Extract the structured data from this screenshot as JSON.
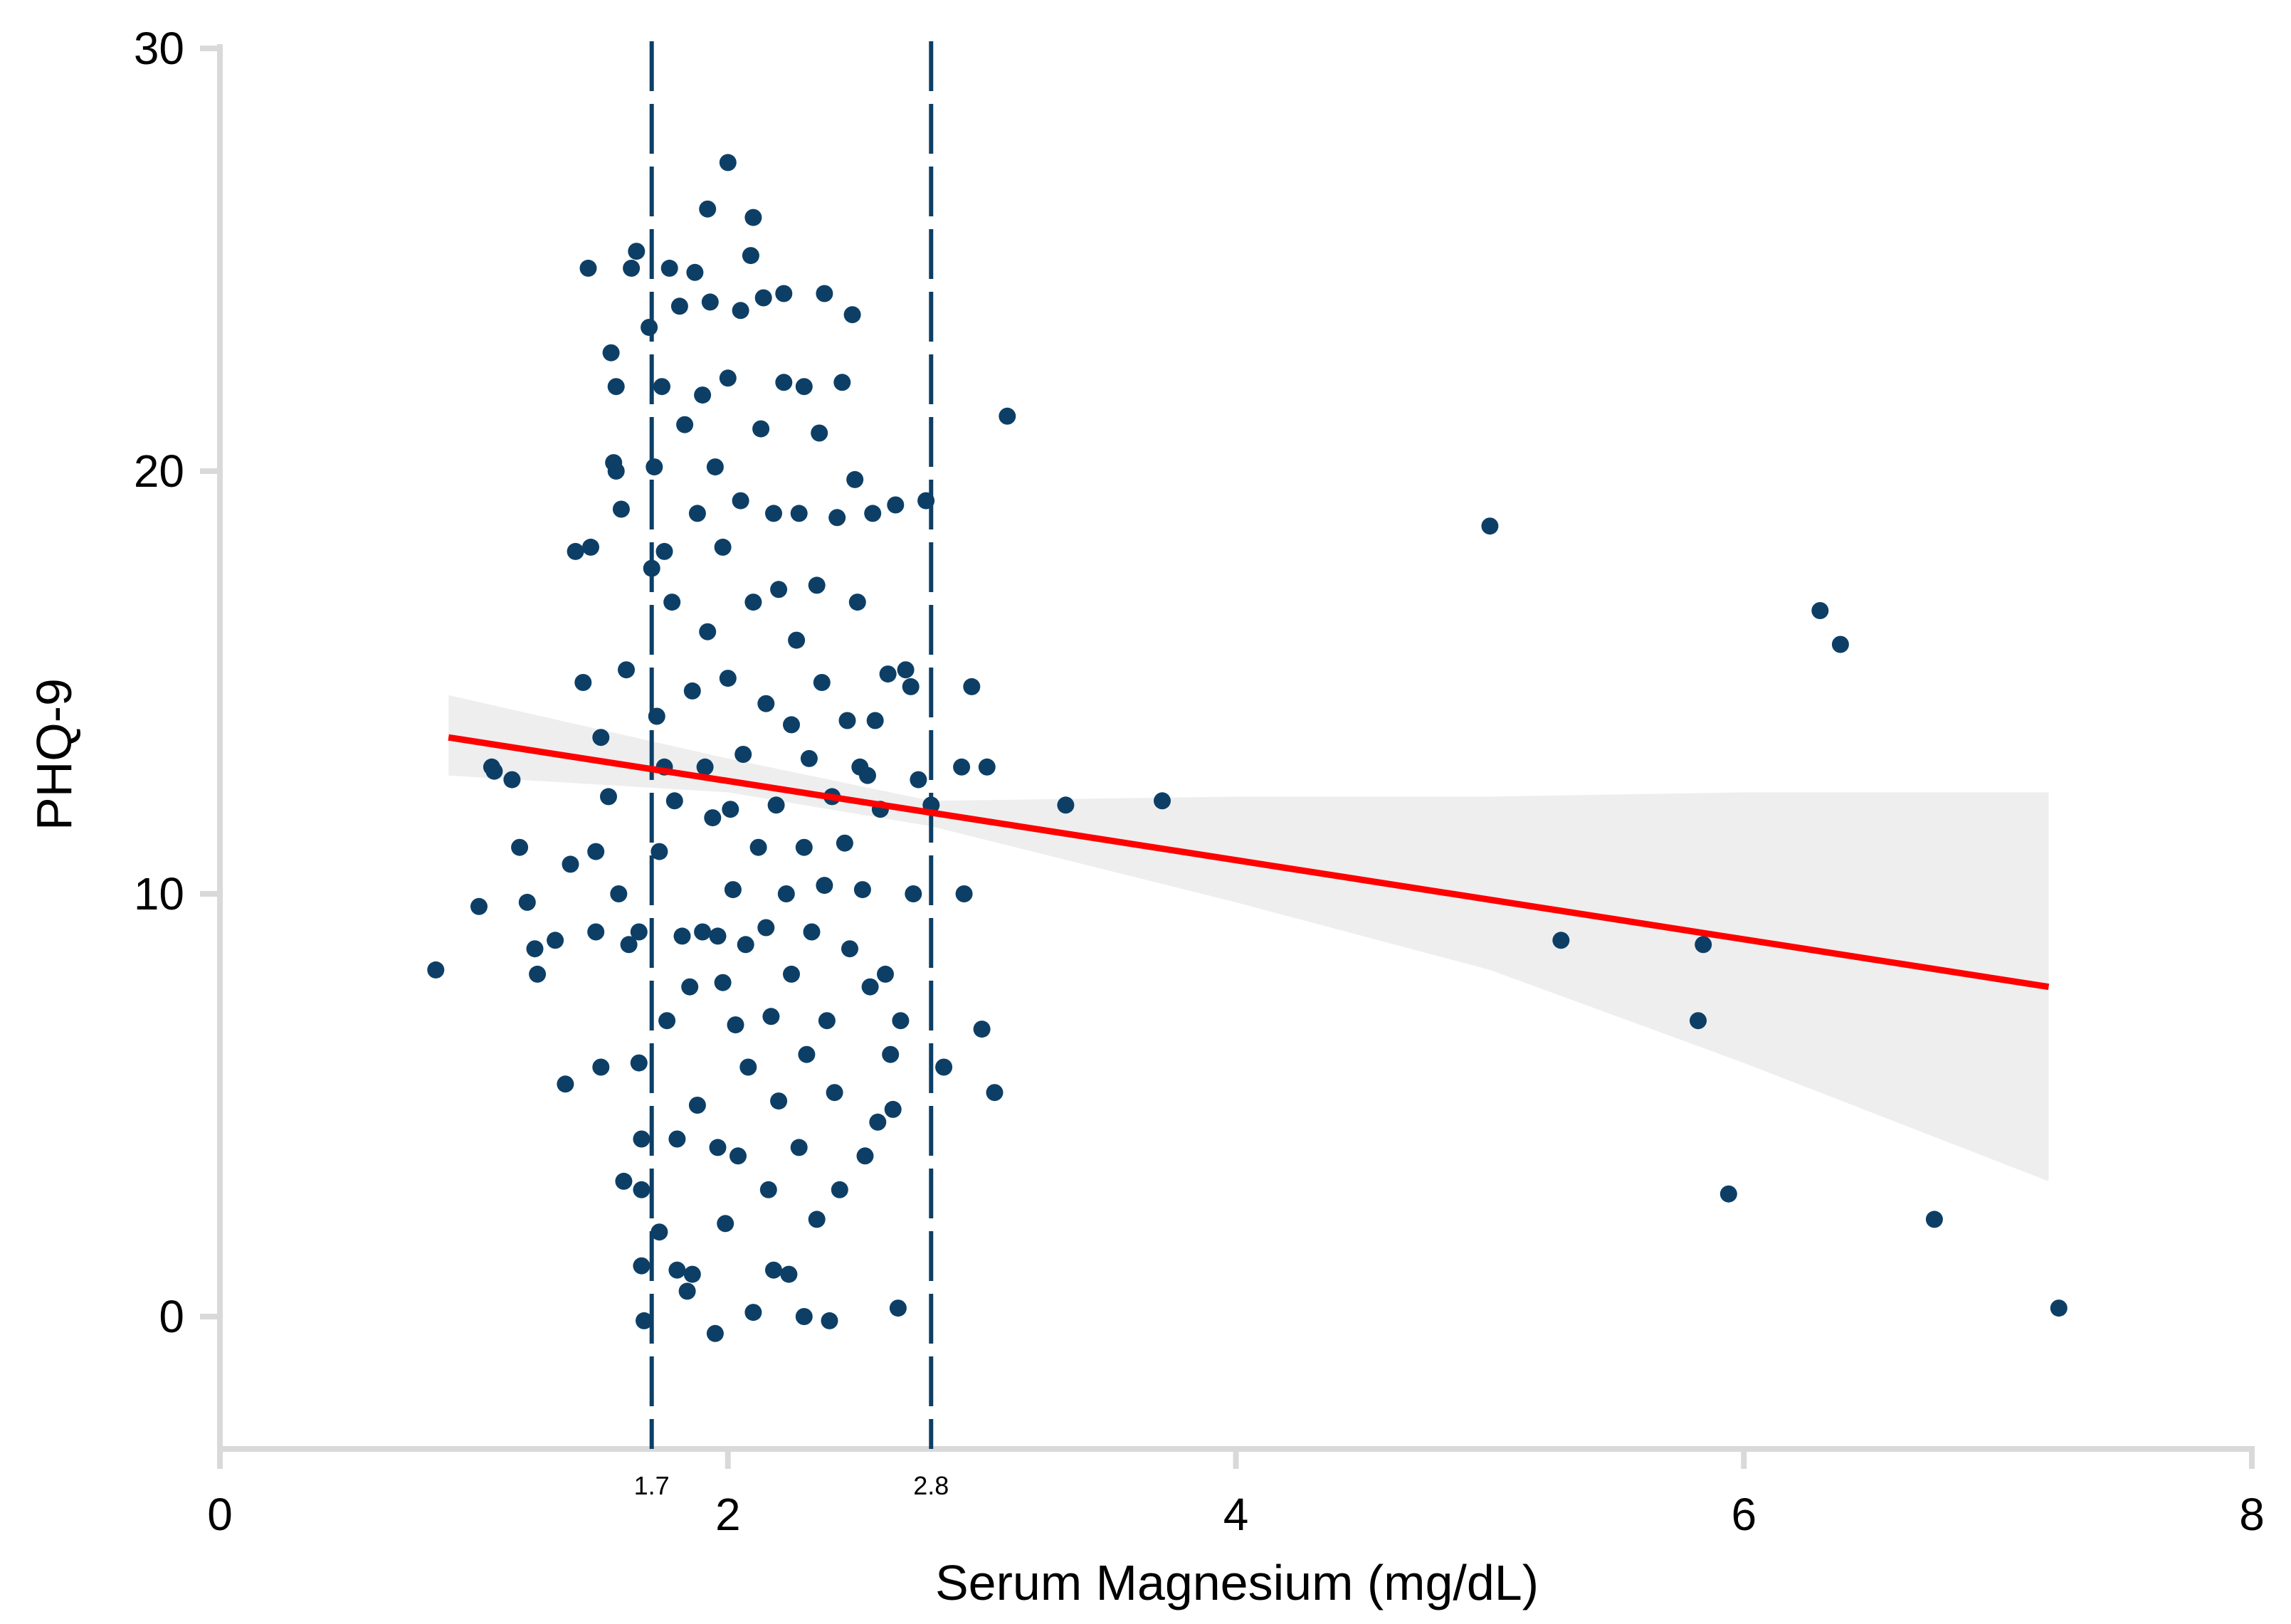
{
  "chart_data": {
    "type": "scatter",
    "title": "",
    "xlabel": "Serum Magnesium (mg/dL)",
    "ylabel": "PHQ-9",
    "xlim": [
      0,
      8
    ],
    "ylim": [
      -3.2,
      30
    ],
    "x_ticks": [
      "0",
      "2",
      "4",
      "6",
      "8"
    ],
    "y_ticks": [
      "0",
      "10",
      "20",
      "30"
    ],
    "grid": false,
    "legend": "none",
    "colors": {
      "points": "#0d3f66",
      "fit_line": "#ff0000",
      "ci_band": "#ebebeb",
      "ref_lines": "#0d3f66",
      "axis": "#d9d9d9"
    },
    "reference_lines": [
      {
        "x": 1.7,
        "label": "1.7",
        "style": "dashed"
      },
      {
        "x": 2.8,
        "label": "2.8",
        "style": "dashed"
      }
    ],
    "fit_line": {
      "x": [
        0.9,
        7.2
      ],
      "y": [
        13.7,
        7.8
      ]
    },
    "confidence_band": {
      "x": [
        0.9,
        2.0,
        2.8,
        4.0,
        5.0,
        6.0,
        7.2
      ],
      "lower": [
        12.8,
        12.4,
        11.6,
        9.8,
        8.2,
        6.0,
        3.2
      ],
      "upper": [
        14.7,
        13.2,
        12.2,
        12.3,
        12.3,
        12.4,
        12.4
      ]
    },
    "series": [
      {
        "points": [
          [
            0.85,
            8.2
          ],
          [
            1.02,
            9.7
          ],
          [
            1.07,
            13.0
          ],
          [
            1.08,
            12.9
          ],
          [
            1.15,
            12.7
          ],
          [
            1.18,
            11.1
          ],
          [
            1.21,
            9.8
          ],
          [
            1.24,
            8.7
          ],
          [
            1.25,
            8.1
          ],
          [
            1.32,
            8.9
          ],
          [
            1.36,
            5.5
          ],
          [
            1.38,
            10.7
          ],
          [
            1.4,
            18.1
          ],
          [
            1.43,
            15.0
          ],
          [
            1.45,
            24.8
          ],
          [
            1.46,
            18.2
          ],
          [
            1.48,
            11.0
          ],
          [
            1.48,
            9.1
          ],
          [
            1.5,
            13.7
          ],
          [
            1.5,
            5.9
          ],
          [
            1.53,
            12.3
          ],
          [
            1.54,
            22.8
          ],
          [
            1.55,
            20.2
          ],
          [
            1.56,
            20.0
          ],
          [
            1.56,
            22.0
          ],
          [
            1.57,
            10.0
          ],
          [
            1.58,
            19.1
          ],
          [
            1.59,
            3.2
          ],
          [
            1.6,
            15.3
          ],
          [
            1.61,
            8.8
          ],
          [
            1.62,
            24.8
          ],
          [
            1.64,
            25.2
          ],
          [
            1.65,
            9.1
          ],
          [
            1.65,
            6.0
          ],
          [
            1.66,
            4.2
          ],
          [
            1.66,
            3.0
          ],
          [
            1.66,
            1.2
          ],
          [
            1.67,
            -0.1
          ],
          [
            1.69,
            23.4
          ],
          [
            1.7,
            17.7
          ],
          [
            1.71,
            20.1
          ],
          [
            1.72,
            14.2
          ],
          [
            1.73,
            11.0
          ],
          [
            1.73,
            2.0
          ],
          [
            1.74,
            22.0
          ],
          [
            1.75,
            18.1
          ],
          [
            1.75,
            13.0
          ],
          [
            1.76,
            7.0
          ],
          [
            1.77,
            24.8
          ],
          [
            1.78,
            16.9
          ],
          [
            1.79,
            12.2
          ],
          [
            1.8,
            4.2
          ],
          [
            1.8,
            1.1
          ],
          [
            1.81,
            23.9
          ],
          [
            1.82,
            9.0
          ],
          [
            1.83,
            21.1
          ],
          [
            1.84,
            0.6
          ],
          [
            1.85,
            7.8
          ],
          [
            1.86,
            14.8
          ],
          [
            1.86,
            1.0
          ],
          [
            1.87,
            24.7
          ],
          [
            1.88,
            19.0
          ],
          [
            1.88,
            5.0
          ],
          [
            1.9,
            21.8
          ],
          [
            1.9,
            9.1
          ],
          [
            1.91,
            13.0
          ],
          [
            1.92,
            26.2
          ],
          [
            1.92,
            16.2
          ],
          [
            1.93,
            24.0
          ],
          [
            1.94,
            11.8
          ],
          [
            1.95,
            -0.4
          ],
          [
            1.95,
            20.1
          ],
          [
            1.96,
            4.0
          ],
          [
            1.96,
            9.0
          ],
          [
            1.98,
            18.2
          ],
          [
            1.98,
            7.9
          ],
          [
            1.99,
            2.2
          ],
          [
            2.0,
            27.3
          ],
          [
            2.0,
            22.2
          ],
          [
            2.0,
            15.1
          ],
          [
            2.01,
            12.0
          ],
          [
            2.02,
            10.1
          ],
          [
            2.03,
            6.9
          ],
          [
            2.04,
            3.8
          ],
          [
            2.05,
            23.8
          ],
          [
            2.05,
            19.3
          ],
          [
            2.06,
            13.3
          ],
          [
            2.07,
            8.8
          ],
          [
            2.08,
            5.9
          ],
          [
            2.09,
            25.1
          ],
          [
            2.1,
            26.0
          ],
          [
            2.1,
            0.1
          ],
          [
            2.1,
            16.9
          ],
          [
            2.12,
            11.1
          ],
          [
            2.13,
            21.0
          ],
          [
            2.14,
            24.1
          ],
          [
            2.15,
            14.5
          ],
          [
            2.15,
            9.2
          ],
          [
            2.16,
            3.0
          ],
          [
            2.17,
            7.1
          ],
          [
            2.18,
            19.0
          ],
          [
            2.18,
            1.1
          ],
          [
            2.19,
            12.1
          ],
          [
            2.2,
            17.2
          ],
          [
            2.2,
            5.1
          ],
          [
            2.22,
            24.2
          ],
          [
            2.22,
            22.1
          ],
          [
            2.23,
            10.0
          ],
          [
            2.24,
            1.0
          ],
          [
            2.25,
            8.1
          ],
          [
            2.25,
            14.0
          ],
          [
            2.27,
            16.0
          ],
          [
            2.28,
            19.0
          ],
          [
            2.28,
            4.0
          ],
          [
            2.3,
            11.1
          ],
          [
            2.3,
            22.0
          ],
          [
            2.3,
            0.0
          ],
          [
            2.31,
            6.2
          ],
          [
            2.32,
            13.2
          ],
          [
            2.33,
            9.1
          ],
          [
            2.35,
            17.3
          ],
          [
            2.35,
            2.3
          ],
          [
            2.36,
            20.9
          ],
          [
            2.37,
            15.0
          ],
          [
            2.38,
            24.2
          ],
          [
            2.38,
            10.2
          ],
          [
            2.39,
            7.0
          ],
          [
            2.4,
            -0.1
          ],
          [
            2.41,
            12.3
          ],
          [
            2.42,
            5.3
          ],
          [
            2.43,
            18.9
          ],
          [
            2.44,
            3.0
          ],
          [
            2.45,
            22.1
          ],
          [
            2.46,
            11.2
          ],
          [
            2.47,
            14.1
          ],
          [
            2.48,
            8.7
          ],
          [
            2.49,
            23.7
          ],
          [
            2.5,
            19.8
          ],
          [
            2.51,
            16.9
          ],
          [
            2.52,
            13.0
          ],
          [
            2.53,
            10.1
          ],
          [
            2.54,
            3.8
          ],
          [
            2.55,
            12.8
          ],
          [
            2.56,
            7.8
          ],
          [
            2.57,
            19.0
          ],
          [
            2.58,
            14.1
          ],
          [
            2.59,
            4.6
          ],
          [
            2.6,
            12.0
          ],
          [
            2.62,
            8.1
          ],
          [
            2.63,
            15.2
          ],
          [
            2.64,
            6.2
          ],
          [
            2.65,
            4.9
          ],
          [
            2.66,
            19.2
          ],
          [
            2.67,
            0.2
          ],
          [
            2.68,
            7.0
          ],
          [
            2.7,
            15.3
          ],
          [
            2.72,
            14.9
          ],
          [
            2.73,
            10.0
          ],
          [
            2.75,
            12.7
          ],
          [
            2.78,
            19.3
          ],
          [
            2.8,
            12.1
          ],
          [
            2.85,
            5.9
          ],
          [
            2.92,
            13.0
          ],
          [
            2.93,
            10.0
          ],
          [
            2.96,
            14.9
          ],
          [
            3.0,
            6.8
          ],
          [
            3.02,
            13.0
          ],
          [
            3.05,
            5.3
          ],
          [
            3.1,
            21.3
          ],
          [
            3.33,
            12.1
          ],
          [
            3.71,
            12.2
          ],
          [
            5.0,
            18.7
          ],
          [
            5.28,
            8.9
          ],
          [
            5.82,
            7.0
          ],
          [
            5.84,
            8.8
          ],
          [
            5.94,
            2.9
          ],
          [
            6.3,
            16.7
          ],
          [
            6.38,
            15.9
          ],
          [
            6.75,
            2.3
          ],
          [
            7.24,
            0.2
          ]
        ]
      }
    ]
  }
}
